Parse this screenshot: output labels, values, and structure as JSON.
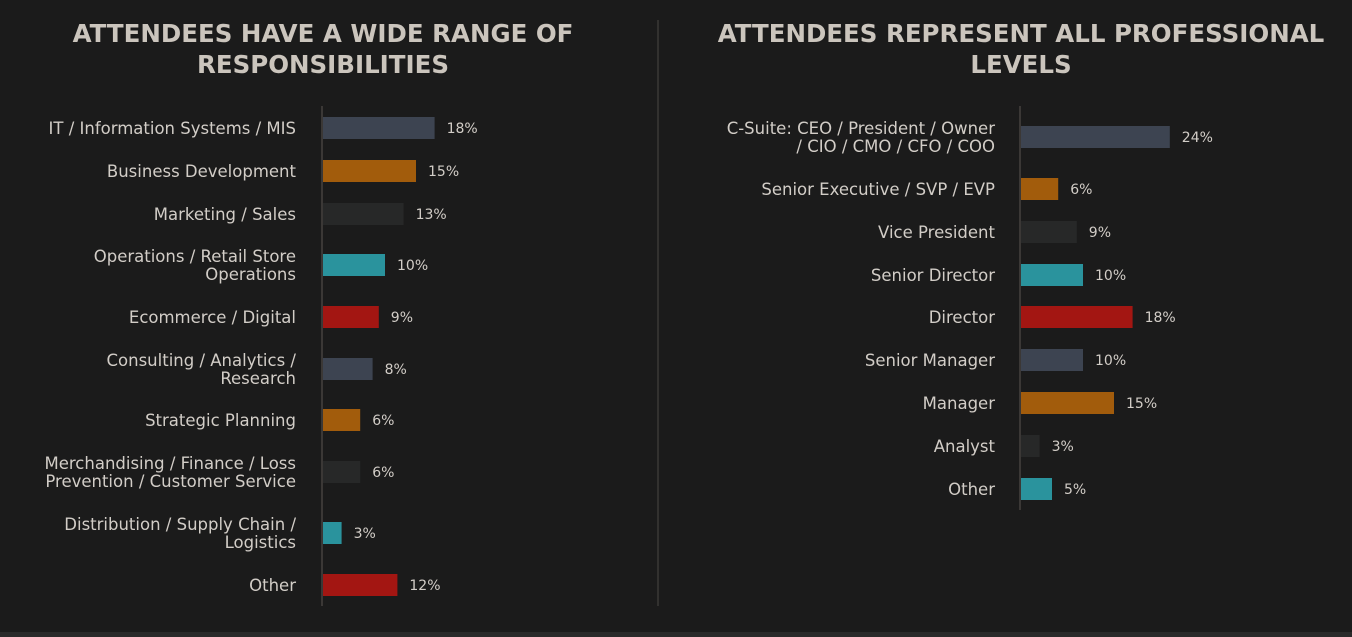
{
  "chart_data": [
    {
      "type": "bar",
      "orientation": "horizontal",
      "title": [
        "ATTENDEES HAVE A WIDE RANGE OF",
        "RESPONSIBILITIES"
      ],
      "categories": [
        [
          "IT / Information Systems / MIS"
        ],
        [
          "Business Development"
        ],
        [
          "Marketing / Sales"
        ],
        [
          "Operations / Retail Store",
          "Operations"
        ],
        [
          "Ecommerce / Digital"
        ],
        [
          "Consulting / Analytics /",
          "Research"
        ],
        [
          "Strategic Planning"
        ],
        [
          "Merchandising / Finance / Loss",
          "Prevention / Customer Service"
        ],
        [
          "Distribution / Supply Chain /",
          "Logistics"
        ],
        [
          "Other"
        ]
      ],
      "values": [
        18,
        15,
        13,
        10,
        9,
        8,
        6,
        6,
        3,
        12
      ],
      "value_labels": [
        "18%",
        "15%",
        "13%",
        "10%",
        "9%",
        "8%",
        "6%",
        "6%",
        "3%",
        "12%"
      ],
      "colors": [
        "#3d4451",
        "#a25c0c",
        "#272828",
        "#2a939d",
        "#a31612",
        "#3d4451",
        "#a25c0c",
        "#272828",
        "#2a939d",
        "#a31612"
      ],
      "unit": "%",
      "xlim": [
        0,
        30
      ]
    },
    {
      "type": "bar",
      "orientation": "horizontal",
      "title": [
        "ATTENDEES REPRESENT ALL PROFESSIONAL",
        "LEVELS"
      ],
      "categories": [
        [
          "C-Suite: CEO / President / Owner",
          "/ CIO / CMO / CFO / COO"
        ],
        [
          "Senior Executive / SVP / EVP"
        ],
        [
          "Vice President"
        ],
        [
          "Senior Director"
        ],
        [
          "Director"
        ],
        [
          "Senior Manager"
        ],
        [
          "Manager"
        ],
        [
          "Analyst"
        ],
        [
          "Other"
        ]
      ],
      "values": [
        24,
        6,
        9,
        10,
        18,
        10,
        15,
        3,
        5
      ],
      "value_labels": [
        "24%",
        "6%",
        "9%",
        "10%",
        "18%",
        "10%",
        "15%",
        "3%",
        "5%"
      ],
      "colors": [
        "#3d4451",
        "#a25c0c",
        "#272828",
        "#2a939d",
        "#a31612",
        "#3d4451",
        "#a25c0c",
        "#272828",
        "#2a939d"
      ],
      "unit": "%",
      "xlim": [
        0,
        30
      ]
    }
  ]
}
